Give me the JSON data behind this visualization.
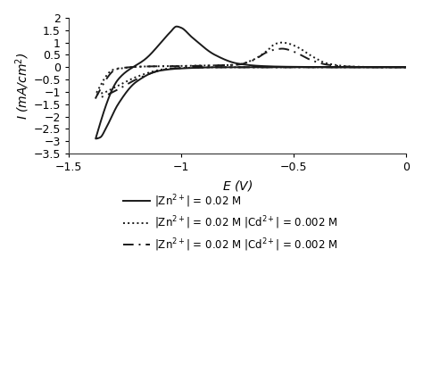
{
  "xlabel": "$E$ (V)",
  "ylabel": "$I$ (mA/cm$^2$)",
  "xlim": [
    -1.5,
    0.0
  ],
  "ylim": [
    -3.5,
    2.0
  ],
  "xticks": [
    -1.5,
    -1.0,
    -0.5,
    0.0
  ],
  "yticks": [
    -3.5,
    -3.0,
    -2.5,
    -2.0,
    -1.5,
    -1.0,
    -0.5,
    0.0,
    0.5,
    1.0,
    1.5,
    2.0
  ],
  "legend": [
    "|Zn$^{2+}$| = 0.02 M",
    "|Zn$^{2+}$| = 0.02 M |Cd$^{2+}$| = 0.002 M",
    "|Zn$^{2+}$| = 0.02 M |Cd$^{2+}$| = 0.002 M"
  ],
  "line_styles": [
    "solid",
    "dotted",
    "dashed"
  ],
  "line_color": "#1a1a1a",
  "background_color": "#ffffff"
}
